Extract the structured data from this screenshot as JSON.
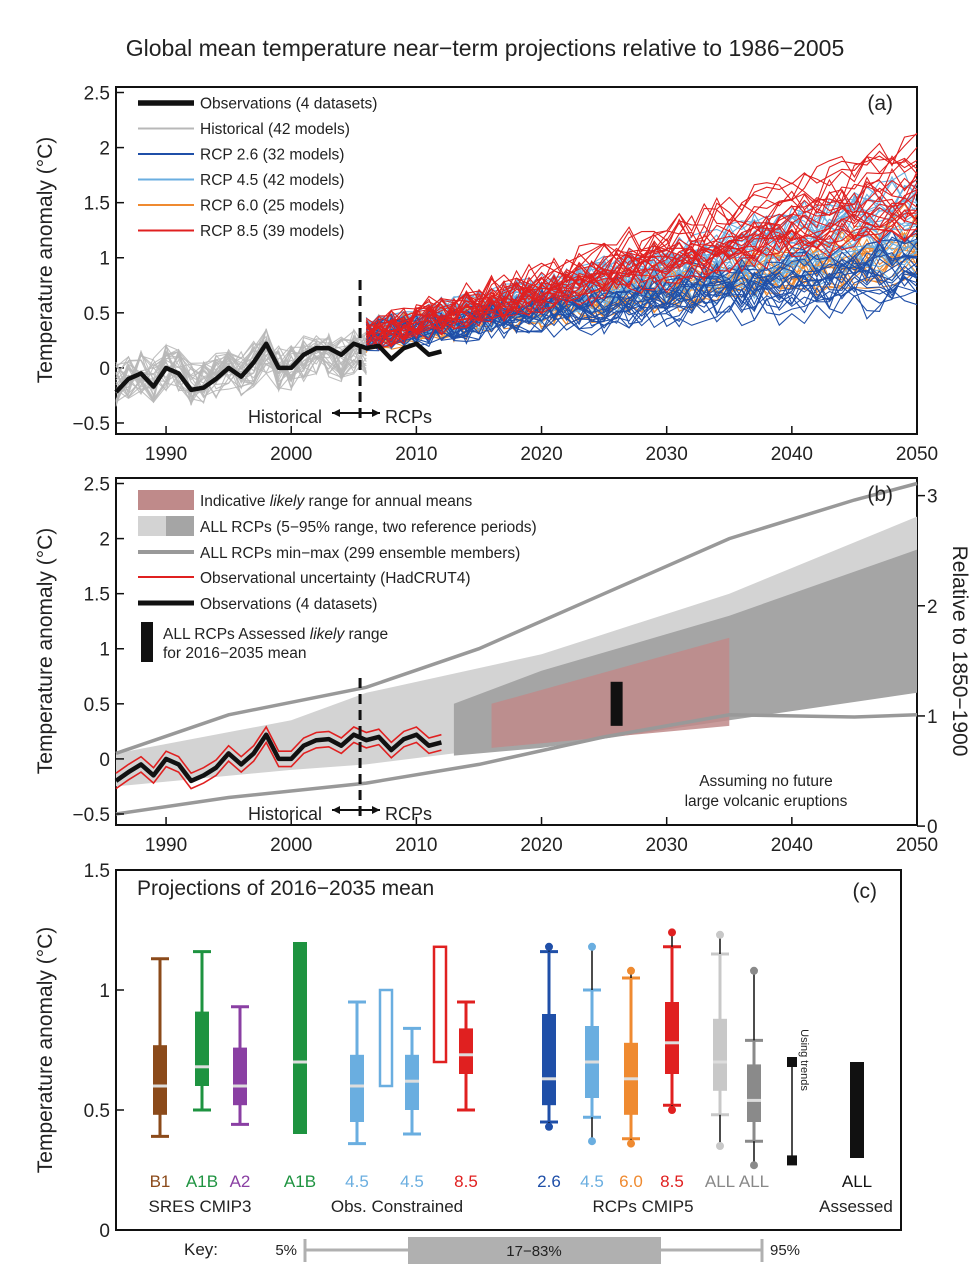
{
  "title": "Global mean temperature near−term projections relative to 1986−2005",
  "colors": {
    "observations": "#111111",
    "historical": "#b8b8b8",
    "rcp26": "#1f4fa8",
    "rcp45": "#6aaee0",
    "rcp60": "#ef8a30",
    "rcp85": "#e02020",
    "sres_b1": "#8b4a1a",
    "sres_a1b": "#1e9340",
    "sres_a2": "#8a3fa3",
    "likely_range": "#bf8a8a",
    "rcp_light": "#d3d3d3",
    "rcp_dark": "#a5a5a5",
    "minmax": "#999999",
    "key_box": "#b0b0b0"
  },
  "chart_data": [
    {
      "id": "a",
      "type": "line",
      "panel_label": "(a)",
      "ylabel": "Temperature anomaly (°C)",
      "xlim": [
        1986,
        2050
      ],
      "ylim": [
        -0.6,
        2.55
      ],
      "x_ticks": [
        1990,
        2000,
        2010,
        2020,
        2030,
        2040,
        2050
      ],
      "y_ticks": [
        "2.5",
        "2",
        "1.5",
        "1",
        "0.5",
        "0",
        "−0.5"
      ],
      "y_tick_values": [
        2.5,
        2,
        1.5,
        1,
        0.5,
        0,
        -0.5
      ],
      "annotations": {
        "left": "Historical",
        "right": "RCPs",
        "divider_year": 2005.5
      },
      "legend": [
        {
          "label": "Observations (4 datasets)",
          "color": "#111111"
        },
        {
          "label": "Historical (42 models)",
          "color": "#b8b8b8"
        },
        {
          "label": "RCP 2.6 (32 models)",
          "color": "#1f4fa8"
        },
        {
          "label": "RCP 4.5 (42 models)",
          "color": "#6aaee0"
        },
        {
          "label": "RCP 6.0 (25 models)",
          "color": "#ef8a30"
        },
        {
          "label": "RCP 8.5 (39 models)",
          "color": "#e02020"
        }
      ],
      "observations": {
        "x": [
          1986,
          1987,
          1988,
          1989,
          1990,
          1991,
          1992,
          1993,
          1994,
          1995,
          1996,
          1997,
          1998,
          1999,
          2000,
          2001,
          2002,
          2003,
          2004,
          2005,
          2006,
          2007,
          2008,
          2009,
          2010,
          2011,
          2012
        ],
        "y": [
          -0.22,
          -0.1,
          -0.05,
          -0.17,
          0.0,
          -0.05,
          -0.2,
          -0.18,
          -0.1,
          0.0,
          -0.08,
          0.05,
          0.22,
          0.0,
          0.0,
          0.12,
          0.18,
          0.18,
          0.12,
          0.22,
          0.18,
          0.2,
          0.08,
          0.18,
          0.22,
          0.12,
          0.15
        ]
      },
      "series": [
        {
          "name": "RCP 2.6 (32 models)",
          "x": [
            2006,
            2050
          ],
          "mean": [
            0.3,
            0.9
          ]
        },
        {
          "name": "RCP 4.5 (42 models)",
          "x": [
            2006,
            2050
          ],
          "mean": [
            0.3,
            1.3
          ]
        },
        {
          "name": "RCP 6.0 (25 models)",
          "x": [
            2006,
            2050
          ],
          "mean": [
            0.3,
            1.15
          ]
        },
        {
          "name": "RCP 8.5 (39 models)",
          "x": [
            2006,
            2050
          ],
          "mean": [
            0.3,
            1.65
          ]
        }
      ]
    },
    {
      "id": "b",
      "type": "area",
      "panel_label": "(b)",
      "ylabel": "Temperature anomaly (°C)",
      "ylabel_right": "Relative to 1850−1900",
      "xlim": [
        1986,
        2050
      ],
      "ylim": [
        -0.6,
        2.55
      ],
      "x_ticks": [
        1990,
        2000,
        2010,
        2020,
        2030,
        2040,
        2050
      ],
      "y_ticks": [
        "2.5",
        "2",
        "1.5",
        "1",
        "0.5",
        "0",
        "−0.5"
      ],
      "y_tick_values": [
        2.5,
        2,
        1.5,
        1,
        0.5,
        0,
        -0.5
      ],
      "right_ticks": [
        "3",
        "2",
        "1",
        "0"
      ],
      "right_tick_values": [
        3,
        2,
        1,
        0
      ],
      "annotations": {
        "left": "Historical",
        "right": "RCPs",
        "note1": "Assuming no future",
        "note2": "large volcanic eruptions",
        "divider_year": 2005.5
      },
      "legend": [
        {
          "label_parts": [
            "Indicative ",
            "likely",
            " range for annual means"
          ]
        },
        {
          "label": "ALL RCPs (5−95% range, two reference periods)"
        },
        {
          "label": "ALL RCPs min−max (299 ensemble members)"
        },
        {
          "label": "Observational uncertainty (HadCRUT4)"
        },
        {
          "label": "Observations (4 datasets)"
        },
        {
          "label_parts": [
            "ALL RCPs Assessed ",
            "likely",
            " range"
          ],
          "label_line2": "for 2016−2035 mean"
        }
      ],
      "likely_range": {
        "x": [
          2016,
          2035
        ],
        "lower": [
          0.1,
          0.3
        ],
        "upper": [
          0.5,
          1.1
        ]
      },
      "assessed_bar": {
        "x": 2026,
        "range": [
          0.3,
          0.7
        ]
      },
      "rcp_5_95_light": {
        "x": [
          1986,
          2000,
          2006,
          2020,
          2035,
          2050
        ],
        "lower": [
          -0.25,
          -0.1,
          -0.05,
          0.15,
          0.4,
          0.65
        ],
        "upper": [
          0.05,
          0.35,
          0.6,
          0.95,
          1.5,
          2.2
        ]
      },
      "rcp_5_95_dark": {
        "x": [
          2013,
          2020,
          2035,
          2050
        ],
        "lower": [
          0.03,
          0.1,
          0.35,
          0.6
        ],
        "upper": [
          0.5,
          0.8,
          1.3,
          1.9
        ]
      },
      "minmax": {
        "x": [
          1986,
          1995,
          2006,
          2015,
          2025,
          2035,
          2045,
          2050
        ],
        "lower": [
          -0.5,
          -0.35,
          -0.22,
          -0.05,
          0.2,
          0.4,
          0.38,
          0.4
        ],
        "upper": [
          0.05,
          0.4,
          0.65,
          1.0,
          1.5,
          2.0,
          2.35,
          2.5
        ]
      },
      "observations": {
        "x": [
          1986,
          1987,
          1988,
          1989,
          1990,
          1991,
          1992,
          1993,
          1994,
          1995,
          1996,
          1997,
          1998,
          1999,
          2000,
          2001,
          2002,
          2003,
          2004,
          2005,
          2006,
          2007,
          2008,
          2009,
          2010,
          2011,
          2012
        ],
        "y": [
          -0.2,
          -0.12,
          -0.05,
          -0.15,
          0.0,
          -0.05,
          -0.2,
          -0.15,
          -0.08,
          0.05,
          -0.05,
          0.05,
          0.22,
          0.0,
          0.0,
          0.12,
          0.17,
          0.18,
          0.12,
          0.22,
          0.17,
          0.2,
          0.08,
          0.18,
          0.22,
          0.12,
          0.15
        ]
      }
    },
    {
      "id": "c",
      "type": "bar",
      "panel_label": "(c)",
      "title": "Projections of 2016−2035 mean",
      "ylabel": "Temperature anomaly (°C)",
      "ylim": [
        0,
        1.5
      ],
      "y_ticks": [
        "1.5",
        "1",
        "0.5",
        "0"
      ],
      "y_tick_values": [
        1.5,
        1,
        0.5,
        0
      ],
      "group_labels": [
        "SRES CMIP3",
        "Obs. Constrained",
        "RCPs CMIP5",
        "Assessed"
      ],
      "using_trends": "Using trends",
      "categories": [
        {
          "label": "B1",
          "color": "#8b4a1a",
          "p5": 0.39,
          "p17": 0.48,
          "median": 0.6,
          "p83": 0.77,
          "p95": 1.13
        },
        {
          "label": "A1B",
          "color": "#1e9340",
          "p5": 0.5,
          "p17": 0.6,
          "median": 0.68,
          "p83": 0.91,
          "p95": 1.16
        },
        {
          "label": "A2",
          "color": "#8a3fa3",
          "p5": 0.44,
          "p17": 0.52,
          "median": 0.6,
          "p83": 0.76,
          "p95": 0.93
        },
        {
          "label": "A1B",
          "color": "#1e9340",
          "range": [
            0.4,
            1.2
          ],
          "median": 0.7
        },
        {
          "label": "4.5",
          "color": "#6aaee0",
          "p5": 0.36,
          "p17": 0.45,
          "median": 0.6,
          "p83": 0.73,
          "p95": 0.95
        },
        {
          "label": "4.5",
          "color": "#6aaee0",
          "hollow_range": [
            0.6,
            1.0
          ],
          "p5": 0.4,
          "p17": 0.5,
          "median": 0.62,
          "p83": 0.73,
          "p95": 0.84
        },
        {
          "label": "8.5",
          "color": "#e02020",
          "hollow_range": [
            0.7,
            1.18
          ],
          "p5": 0.5,
          "p17": 0.65,
          "median": 0.73,
          "p83": 0.84,
          "p95": 0.95
        },
        {
          "label": "2.6",
          "color": "#1f4fa8",
          "min": 0.43,
          "p5": 0.45,
          "p17": 0.52,
          "median": 0.63,
          "p83": 0.9,
          "p95": 1.16,
          "max": 1.18
        },
        {
          "label": "4.5",
          "color": "#6aaee0",
          "min": 0.37,
          "p5": 0.47,
          "p17": 0.55,
          "median": 0.7,
          "p83": 0.85,
          "p95": 1.0,
          "max": 1.18
        },
        {
          "label": "6.0",
          "color": "#ef8a30",
          "min": 0.36,
          "p5": 0.38,
          "p17": 0.48,
          "median": 0.63,
          "p83": 0.78,
          "p95": 1.05,
          "max": 1.08
        },
        {
          "label": "8.5",
          "color": "#e02020",
          "min": 0.5,
          "p5": 0.52,
          "p17": 0.65,
          "median": 0.78,
          "p83": 0.95,
          "p95": 1.18,
          "max": 1.24
        },
        {
          "label": "ALL",
          "color": "#c8c8c8",
          "min": 0.35,
          "p5": 0.48,
          "p17": 0.58,
          "median": 0.7,
          "p83": 0.88,
          "p95": 1.15,
          "max": 1.23
        },
        {
          "label": "ALL",
          "color": "#8a8a8a",
          "min": 0.27,
          "p5": 0.37,
          "p17": 0.45,
          "median": 0.54,
          "p83": 0.69,
          "p95": 0.79,
          "max": 1.08
        },
        {
          "label": "ALL",
          "color": "#111111",
          "range": [
            0.3,
            0.7
          ]
        }
      ],
      "using_trends_range": [
        0.29,
        0.7
      ],
      "key": {
        "label": "Key:",
        "p5": "5%",
        "mid": "17−83%",
        "p95": "95%"
      }
    }
  ]
}
